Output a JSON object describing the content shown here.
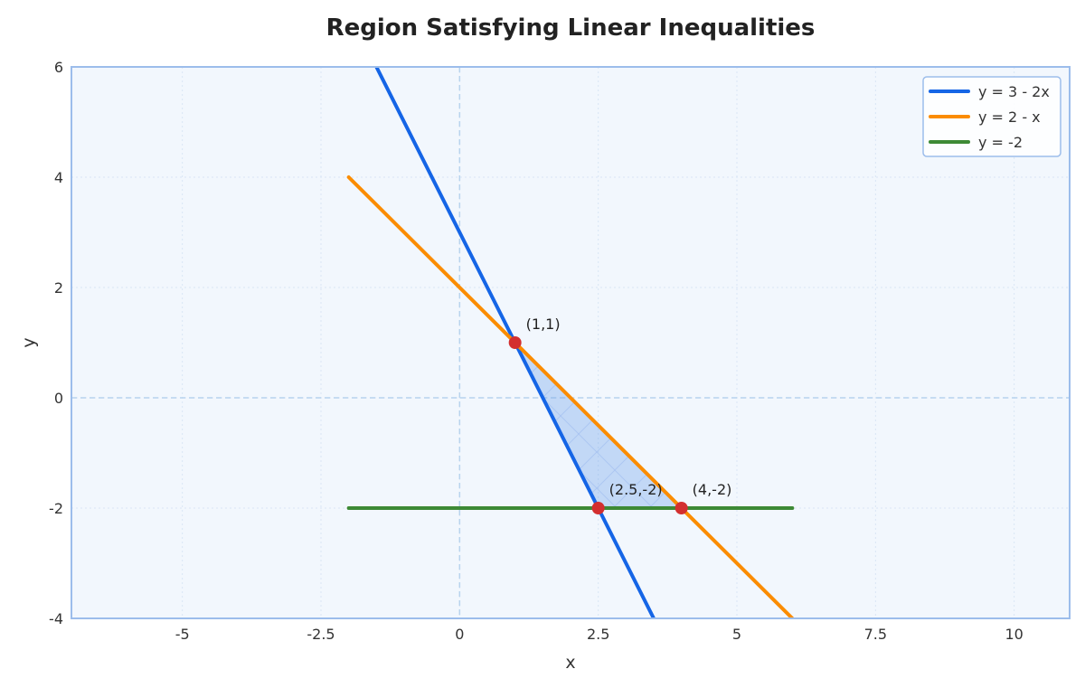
{
  "chart_data": {
    "type": "line",
    "title": "Region Satisfying Linear Inequalities",
    "xlabel": "x",
    "ylabel": "y",
    "xlim": [
      -7,
      11
    ],
    "ylim": [
      -4,
      6
    ],
    "x_ticks": [
      -5,
      -2.5,
      0,
      2.5,
      5,
      7.5,
      10
    ],
    "x_tick_labels": [
      "-5",
      "-2.5",
      "0",
      "2.5",
      "5",
      "7.5",
      "10"
    ],
    "y_ticks": [
      -4,
      -2,
      0,
      2,
      4,
      6
    ],
    "y_tick_labels": [
      "-4",
      "-2",
      "0",
      "2",
      "4",
      "6"
    ],
    "grid": true,
    "legend_position": "top-right",
    "series": [
      {
        "name": "y = 3 - 2x",
        "color": "#1565e6",
        "x": [
          -1.5,
          3.5
        ],
        "y": [
          6,
          -4
        ]
      },
      {
        "name": "y = 2 - x",
        "color": "#fb8c00",
        "x": [
          -2,
          6
        ],
        "y": [
          4,
          -4
        ]
      },
      {
        "name": "y = -2",
        "color": "#3d8a35",
        "x": [
          -2,
          6
        ],
        "y": [
          -2,
          -2
        ]
      }
    ],
    "region": {
      "fill": "#6b9ee8",
      "vertices": [
        [
          1,
          1
        ],
        [
          2.5,
          -2
        ],
        [
          4,
          -2
        ]
      ]
    },
    "points": [
      {
        "x": 1,
        "y": 1,
        "label": "(1,1)"
      },
      {
        "x": 2.5,
        "y": -2,
        "label": "(2.5,-2)"
      },
      {
        "x": 4,
        "y": -2,
        "label": "(4,-2)"
      }
    ],
    "point_color": "#d32f2f",
    "plot_background": "#f2f7fd",
    "frame_color": "#9cbdeb",
    "zero_line_color": "#b8d4ee"
  }
}
